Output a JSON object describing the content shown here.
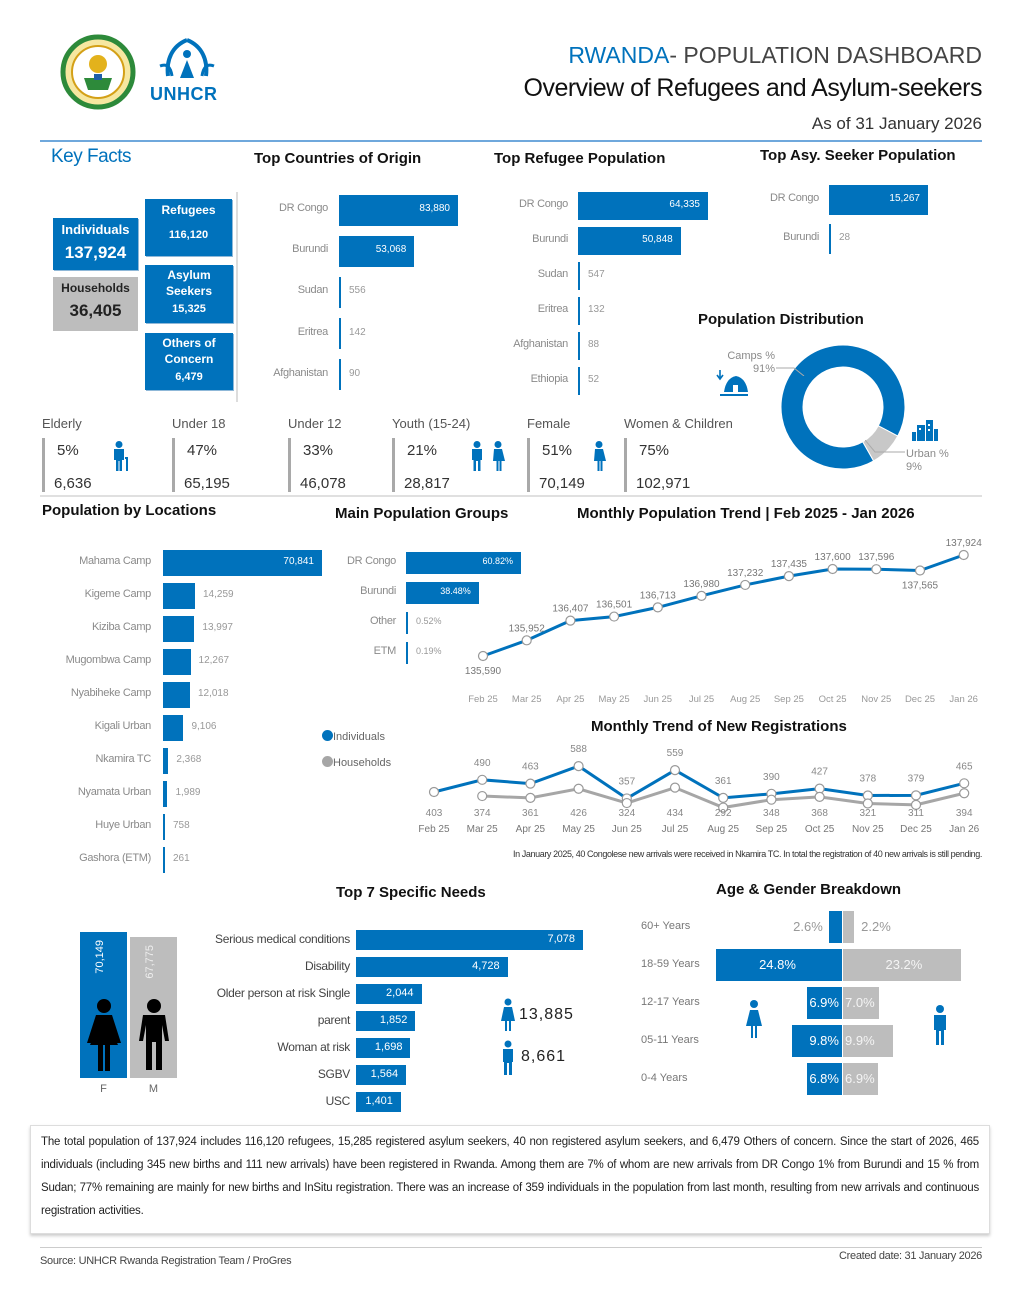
{
  "header": {
    "title_prefix": "RWANDA",
    "title_rest": "- POPULATION DASHBOARD",
    "subtitle": "Overview of Refugees and Asylum-seekers",
    "as_of": "As of 31 January 2026",
    "logo_text": "UNHCR"
  },
  "colors": {
    "blue": "#0072bc",
    "gray": "#bdbdbd",
    "label": "#8a8a8a"
  },
  "key_facts": {
    "title": "Key Facts",
    "individuals": {
      "label": "Individuals",
      "value": "137,924"
    },
    "households": {
      "label": "Households",
      "value": "36,405"
    },
    "refugees": {
      "label": "Refugees",
      "value": "116,120"
    },
    "asylum": {
      "label1": "Asylum",
      "label2": "Seekers",
      "value": "15,325"
    },
    "others": {
      "label1": "Others of",
      "label2": "Concern",
      "value": "6,479"
    }
  },
  "stats": [
    {
      "label": "Elderly",
      "pct": "5%",
      "count": "6,636",
      "icon": "elderly-icon"
    },
    {
      "label": "Under 18",
      "pct": "47%",
      "count": "65,195"
    },
    {
      "label": "Under 12",
      "pct": "33%",
      "count": "46,078"
    },
    {
      "label": "Youth (15-24)",
      "pct": "21%",
      "count": "28,817",
      "icon": "youth-icon"
    },
    {
      "label": "Female",
      "pct": "51%",
      "count": "70,149",
      "icon": "female-icon"
    },
    {
      "label": "Women & Children",
      "pct": "75%",
      "count": "102,971"
    }
  ],
  "registrations_note": "In January 2025, 40 Congolese new arrivals were received in Nkamira TC. In total the registration of 40 new arrivals is still pending.",
  "specific_needs_extra": [
    {
      "value": "13,885",
      "icon": "female-icon"
    },
    {
      "value": "8,661",
      "icon": "male-icon"
    }
  ],
  "summary": "The total population of 137,924 includes 116,120 refugees, 15,285 registered asylum seekers, 40 non registered asylum seekers, and 6,479 Others of concern. Since the start of 2026, 465 individuals (including 345 new births and 111 new arrivals) have been registered in Rwanda. Among them are 7% of whom are new arrivals from DR Congo 1% from Burundi and 15 % from Sudan; 77% remaining are mainly for new births and InSitu registration. There was an increase of 359 individuals in the population from last month, resulting from new arrivals and continuous registration activities.",
  "footer": {
    "source": "Source: UNHCR Rwanda Registration Team / ProGres",
    "created": "Created date: 31 January 2026"
  },
  "chart_data": [
    {
      "id": "origin",
      "type": "bar",
      "title": "Top Countries of Origin",
      "categories": [
        "DR Congo",
        "Burundi",
        "Sudan",
        "Eritrea",
        "Afghanistan"
      ],
      "values": [
        83880,
        53068,
        556,
        142,
        90
      ]
    },
    {
      "id": "refugee",
      "type": "bar",
      "title": "Top Refugee Population",
      "categories": [
        "DR Congo",
        "Burundi",
        "Sudan",
        "Eritrea",
        "Afghanistan",
        "Ethiopia"
      ],
      "values": [
        64335,
        50848,
        547,
        132,
        88,
        52
      ]
    },
    {
      "id": "asylum",
      "type": "bar",
      "title": "Top Asy. Seeker Population",
      "categories": [
        "DR Congo",
        "Burundi"
      ],
      "values": [
        15267,
        28
      ]
    },
    {
      "id": "distribution",
      "type": "pie",
      "title": "Population Distribution",
      "categories": [
        "Camps %",
        "Urban %"
      ],
      "values": [
        91,
        9
      ],
      "labels": [
        "91%",
        "9%"
      ],
      "colors": [
        "#0072bc",
        "#c8c8c8"
      ]
    },
    {
      "id": "locations",
      "type": "bar",
      "title": "Population by Locations",
      "categories": [
        "Mahama Camp",
        "Kigeme Camp",
        "Kiziba Camp",
        "Mugombwa Camp",
        "Nyabiheke Camp",
        "Kigali Urban",
        "Nkamira TC",
        "Nyamata Urban",
        "Huye Urban",
        "Gashora (ETM)"
      ],
      "values": [
        70841,
        14259,
        13997,
        12267,
        12018,
        9106,
        2368,
        1989,
        758,
        261
      ]
    },
    {
      "id": "groups",
      "type": "bar",
      "title": "Main Population Groups",
      "categories": [
        "DR Congo",
        "Burundi",
        "Other",
        "ETM"
      ],
      "values": [
        60.82,
        38.48,
        0.52,
        0.19
      ],
      "labels": [
        "60.82%",
        "38.48%",
        "0.52%",
        "0.19%"
      ]
    },
    {
      "id": "trend",
      "type": "line",
      "title": "Monthly Population Trend | Feb 2025 - Jan 2026",
      "categories": [
        "Feb 25",
        "Mar 25",
        "Apr 25",
        "May 25",
        "Jun 25",
        "Jul 25",
        "Aug 25",
        "Sep 25",
        "Oct 25",
        "Nov 25",
        "Dec 25",
        "Jan 26"
      ],
      "values": [
        135590,
        135952,
        136407,
        136501,
        136713,
        136980,
        137232,
        137435,
        137600,
        137596,
        137565,
        137924
      ]
    },
    {
      "id": "registrations",
      "type": "line",
      "title": "Monthly Trend of New Registrations",
      "categories": [
        "Feb 25",
        "Mar 25",
        "Apr 25",
        "May 25",
        "Jun 25",
        "Jul 25",
        "Aug 25",
        "Sep 25",
        "Oct 25",
        "Nov 25",
        "Dec 25",
        "Jan 26"
      ],
      "series": [
        {
          "name": "Individuals",
          "color": "#0072bc",
          "values": [
            403,
            490,
            463,
            588,
            357,
            559,
            361,
            390,
            427,
            378,
            379,
            465
          ]
        },
        {
          "name": "Households",
          "color": "#a6a6a6",
          "values": [
            null,
            374,
            361,
            426,
            324,
            434,
            292,
            348,
            368,
            321,
            311,
            394
          ]
        }
      ],
      "legend": "left"
    },
    {
      "id": "sex",
      "type": "bar",
      "categories": [
        "F",
        "M"
      ],
      "values": [
        70149,
        67775
      ],
      "colors": [
        "#0072bc",
        "#bdbdbd"
      ]
    },
    {
      "id": "needs",
      "type": "bar",
      "title": "Top 7 Specific Needs",
      "categories": [
        "Serious medical conditions",
        "Disability",
        "Older person at risk Single",
        "parent",
        "Woman at risk",
        "SGBV",
        "USC"
      ],
      "values": [
        7078,
        4728,
        2044,
        1852,
        1698,
        1564,
        1401
      ]
    },
    {
      "id": "age",
      "type": "bar",
      "title": "Age & Gender Breakdown",
      "categories": [
        "60+ Years",
        "18-59 Years",
        "12-17 Years",
        "05-11 Years",
        "0-4 Years"
      ],
      "series": [
        {
          "name": "Female",
          "values": [
            2.6,
            24.8,
            6.9,
            9.8,
            6.8
          ],
          "labels": [
            "2.6%",
            "24.8%",
            "6.9%",
            "9.8%",
            "6.8%"
          ]
        },
        {
          "name": "Male",
          "values": [
            2.2,
            23.2,
            7.0,
            9.9,
            6.9
          ],
          "labels": [
            "2.2%",
            "23.2%",
            "7.0%",
            "9.9%",
            "6.9%"
          ]
        }
      ]
    }
  ]
}
